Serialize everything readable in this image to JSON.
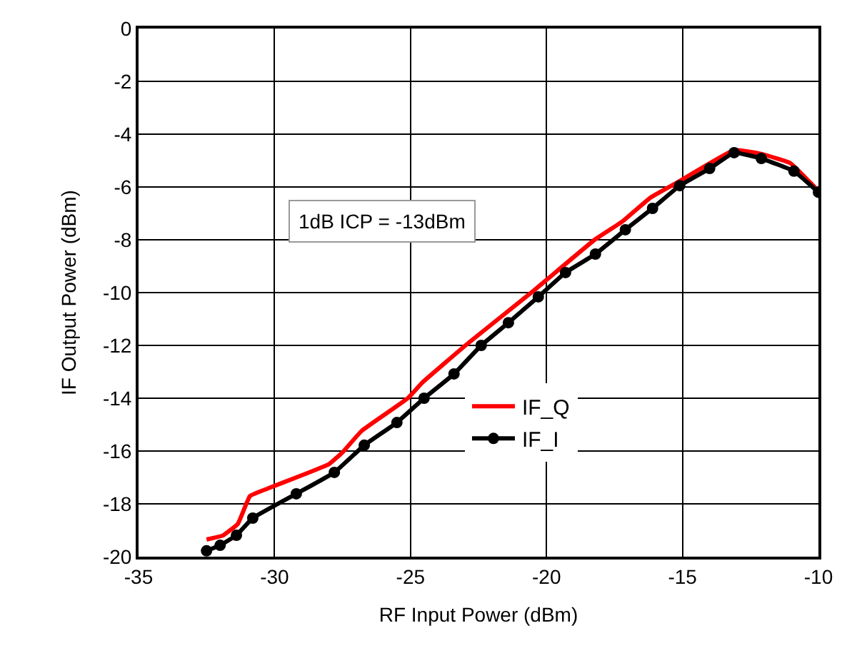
{
  "chart_data": {
    "type": "line",
    "xlabel": "RF Input Power (dBm)",
    "ylabel": "IF Output Power (dBm)",
    "xlim": [
      -35,
      -10
    ],
    "xticks": [
      -35,
      -30,
      -25,
      -20,
      -15,
      -10
    ],
    "ylim": [
      -20,
      0
    ],
    "yticks": [
      -20,
      -18,
      -16,
      -14,
      -12,
      -10,
      -8,
      -6,
      -4,
      -2,
      0
    ],
    "grid": true,
    "legend": "bottom right",
    "annotations": [
      "1dB ICP = -13dBm"
    ],
    "series": [
      {
        "name": "IF_Q",
        "color": "#ff0000",
        "marker": "none",
        "x": [
          -32.5,
          -31.9,
          -31.35,
          -30.9,
          -30.2,
          -29.2,
          -28.0,
          -27.5,
          -26.8,
          -25.1,
          -24.56,
          -22.86,
          -20.44,
          -18.23,
          -17.2,
          -16.17,
          -15.14,
          -13.09,
          -12.06,
          -11.03,
          -10.05
        ],
        "values": [
          -19.35,
          -19.2,
          -18.76,
          -17.7,
          -17.4,
          -17.0,
          -16.5,
          -16.05,
          -15.24,
          -14.0,
          -13.4,
          -11.9,
          -9.9,
          -8.0,
          -7.3,
          -6.4,
          -5.8,
          -4.6,
          -4.76,
          -5.1,
          -6.1
        ]
      },
      {
        "name": "IF_I",
        "color": "#000000",
        "marker": "circle",
        "x": [
          -32.5,
          -32.0,
          -31.4,
          -30.8,
          -29.2,
          -27.8,
          -26.7,
          -25.5,
          -24.5,
          -23.4,
          -22.4,
          -21.4,
          -20.3,
          -19.3,
          -18.2,
          -17.1,
          -16.1,
          -15.1,
          -14.0,
          -13.1,
          -12.1,
          -10.9,
          -10.0
        ],
        "values": [
          -19.78,
          -19.57,
          -19.19,
          -18.54,
          -17.62,
          -16.81,
          -15.78,
          -14.92,
          -14.0,
          -13.08,
          -12.0,
          -11.14,
          -10.16,
          -9.24,
          -8.54,
          -7.62,
          -6.81,
          -5.95,
          -5.3,
          -4.7,
          -4.92,
          -5.4,
          -6.2
        ]
      }
    ]
  }
}
